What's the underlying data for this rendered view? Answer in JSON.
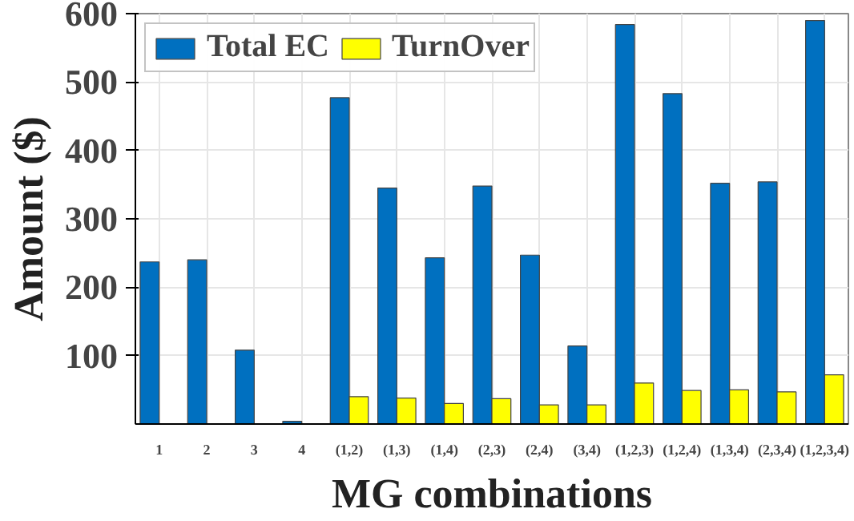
{
  "chart_data": {
    "type": "bar",
    "xlabel": "MG combinations",
    "ylabel": "Amount ($)",
    "categories": [
      "1",
      "2",
      "3",
      "4",
      "(1,2)",
      "(1,3)",
      "(1,4)",
      "(2,3)",
      "(2,4)",
      "(3,4)",
      "(1,2,3)",
      "(1,2,4)",
      "(1,3,4)",
      "(2,3,4)",
      "(1,2,3,4)"
    ],
    "series": [
      {
        "name": "Total EC",
        "color": "#0070c0",
        "values": [
          237,
          240,
          108,
          4,
          477,
          345,
          243,
          348,
          247,
          114,
          584,
          483,
          352,
          354,
          590
        ]
      },
      {
        "name": "TurnOver",
        "color": "#ffff00",
        "values": [
          null,
          null,
          null,
          null,
          40,
          38,
          30,
          37,
          28,
          28,
          60,
          49,
          50,
          47,
          72
        ]
      }
    ],
    "ylim": [
      0,
      600
    ],
    "yticks": [
      100,
      200,
      300,
      400,
      500,
      600
    ],
    "grid": true,
    "legend": "top left"
  }
}
